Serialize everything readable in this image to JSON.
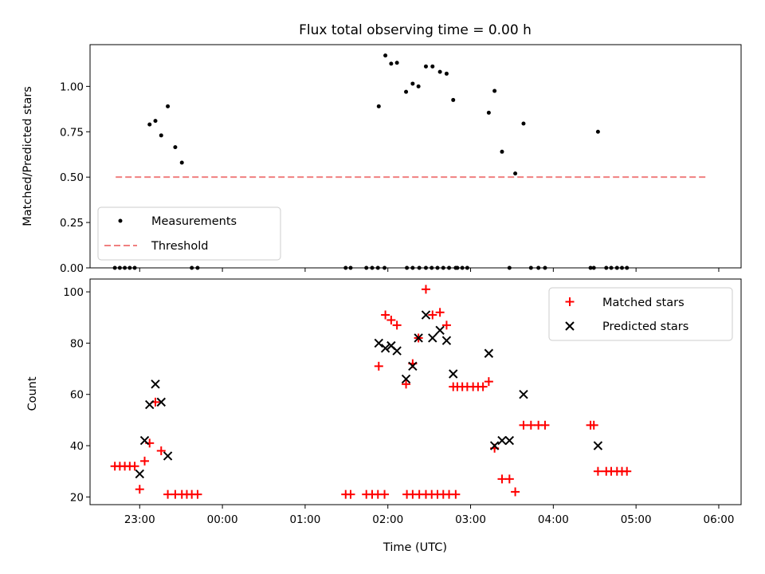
{
  "chart_data": [
    {
      "type": "scatter",
      "title": "Flux total observing time = 0.00 h",
      "xlabel": "",
      "ylabel": "Matched/Predicted stars",
      "xlim": [
        -0.6,
        7.27
      ],
      "ylim": [
        0,
        1.23
      ],
      "y_ticks": [
        0,
        0.25,
        0.5,
        0.75,
        1.0
      ],
      "y_tick_labels": [
        "0.00",
        "0.25",
        "0.50",
        "0.75",
        "1.00"
      ],
      "threshold": {
        "x_start": -0.29,
        "x_end": 6.86,
        "y": 0.5,
        "color": "#f08080"
      },
      "legend": {
        "position": "lower-left",
        "entries": [
          "Measurements",
          "Threshold"
        ]
      },
      "series": [
        {
          "name": "Measurements",
          "color": "#000000",
          "marker": "dot",
          "x": [
            -0.3,
            -0.24,
            -0.18,
            -0.12,
            -0.06,
            0.12,
            0.19,
            0.26,
            0.34,
            0.43,
            0.51,
            0.63,
            0.7,
            2.49,
            2.55,
            2.74,
            2.81,
            2.88,
            2.96,
            3.23,
            3.3,
            3.38,
            3.46,
            3.53,
            3.6,
            3.67,
            3.74,
            3.82,
            2.89,
            2.97,
            3.04,
            3.11,
            3.22,
            3.3,
            3.37,
            3.46,
            3.54,
            3.63,
            3.71,
            3.79,
            3.84,
            3.9,
            3.96,
            4.22,
            4.29,
            4.38,
            4.47,
            4.54,
            4.64,
            4.73,
            4.82,
            4.9,
            5.45,
            5.49,
            5.54,
            5.64,
            5.7,
            5.77,
            5.83,
            5.89
          ],
          "y": [
            0,
            0,
            0,
            0,
            0,
            0.79,
            0.81,
            0.73,
            0.89,
            0.665,
            0.58,
            0,
            0,
            0,
            0,
            0,
            0,
            0,
            0,
            0,
            0,
            0,
            0,
            0,
            0,
            0,
            0,
            0,
            0.89,
            1.17,
            1.125,
            1.13,
            0.97,
            1.015,
            1.0,
            1.11,
            1.11,
            1.08,
            1.07,
            0.925,
            0,
            0,
            0,
            0.855,
            0.975,
            0.64,
            0,
            0.52,
            0.795,
            0,
            0,
            0,
            0,
            0,
            0.75,
            0,
            0,
            0,
            0,
            0
          ]
        }
      ]
    },
    {
      "type": "scatter",
      "title": "",
      "xlabel": "Time (UTC)",
      "ylabel": "Count",
      "xlim": [
        -0.6,
        7.27
      ],
      "ylim": [
        17,
        105
      ],
      "x_tick_values": [
        0,
        1,
        2,
        3,
        4,
        5,
        6,
        7
      ],
      "x_tick_labels": [
        "23:00",
        "00:00",
        "01:00",
        "02:00",
        "03:00",
        "04:00",
        "05:00",
        "06:00"
      ],
      "y_ticks": [
        20,
        40,
        60,
        80,
        100
      ],
      "y_tick_labels": [
        "20",
        "40",
        "60",
        "80",
        "100"
      ],
      "legend": {
        "position": "top-right",
        "entries": [
          "Matched stars",
          "Predicted stars"
        ]
      },
      "series": [
        {
          "name": "Matched stars",
          "color": "#ff0000",
          "marker": "plus",
          "x": [
            -0.3,
            -0.24,
            -0.18,
            -0.12,
            -0.06,
            0.0,
            0.06,
            0.12,
            0.19,
            0.26,
            0.34,
            0.43,
            0.51,
            0.57,
            0.63,
            0.7,
            2.49,
            2.55,
            2.74,
            2.81,
            2.88,
            2.96,
            3.23,
            3.3,
            3.38,
            3.46,
            3.53,
            3.6,
            3.67,
            3.74,
            3.82,
            2.89,
            2.97,
            3.04,
            3.11,
            3.22,
            3.3,
            3.37,
            3.46,
            3.54,
            3.63,
            3.71,
            3.79,
            3.84,
            3.9,
            3.96,
            4.03,
            4.09,
            4.15,
            4.22,
            4.29,
            4.38,
            4.47,
            4.54,
            4.64,
            4.73,
            4.82,
            4.9,
            5.45,
            5.49,
            5.54,
            5.64,
            5.7,
            5.77,
            5.83,
            5.89
          ],
          "y": [
            32,
            32,
            32,
            32,
            32,
            23,
            34,
            41,
            57,
            38,
            21,
            21,
            21,
            21,
            21,
            21,
            21,
            21,
            21,
            21,
            21,
            21,
            21,
            21,
            21,
            21,
            21,
            21,
            21,
            21,
            21,
            71,
            91,
            89,
            87,
            64,
            72,
            82,
            101,
            91,
            92,
            87,
            63,
            63,
            63,
            63,
            63,
            63,
            63,
            65,
            39,
            27,
            27,
            22,
            48,
            48,
            48,
            48,
            48,
            48,
            30,
            30,
            30,
            30,
            30,
            30
          ]
        },
        {
          "name": "Predicted stars",
          "color": "#000000",
          "marker": "x",
          "x": [
            0.0,
            0.06,
            0.12,
            0.19,
            0.26,
            0.34,
            2.89,
            2.97,
            3.04,
            3.11,
            3.22,
            3.3,
            3.37,
            3.46,
            3.54,
            3.63,
            3.71,
            3.79,
            4.22,
            4.29,
            4.38,
            4.47,
            4.64,
            5.54
          ],
          "y": [
            29,
            42,
            56,
            64,
            57,
            36,
            80,
            78,
            79,
            77,
            66,
            71,
            82,
            91,
            82,
            85,
            81,
            68,
            76,
            40,
            42,
            42,
            60,
            40
          ]
        }
      ]
    }
  ]
}
